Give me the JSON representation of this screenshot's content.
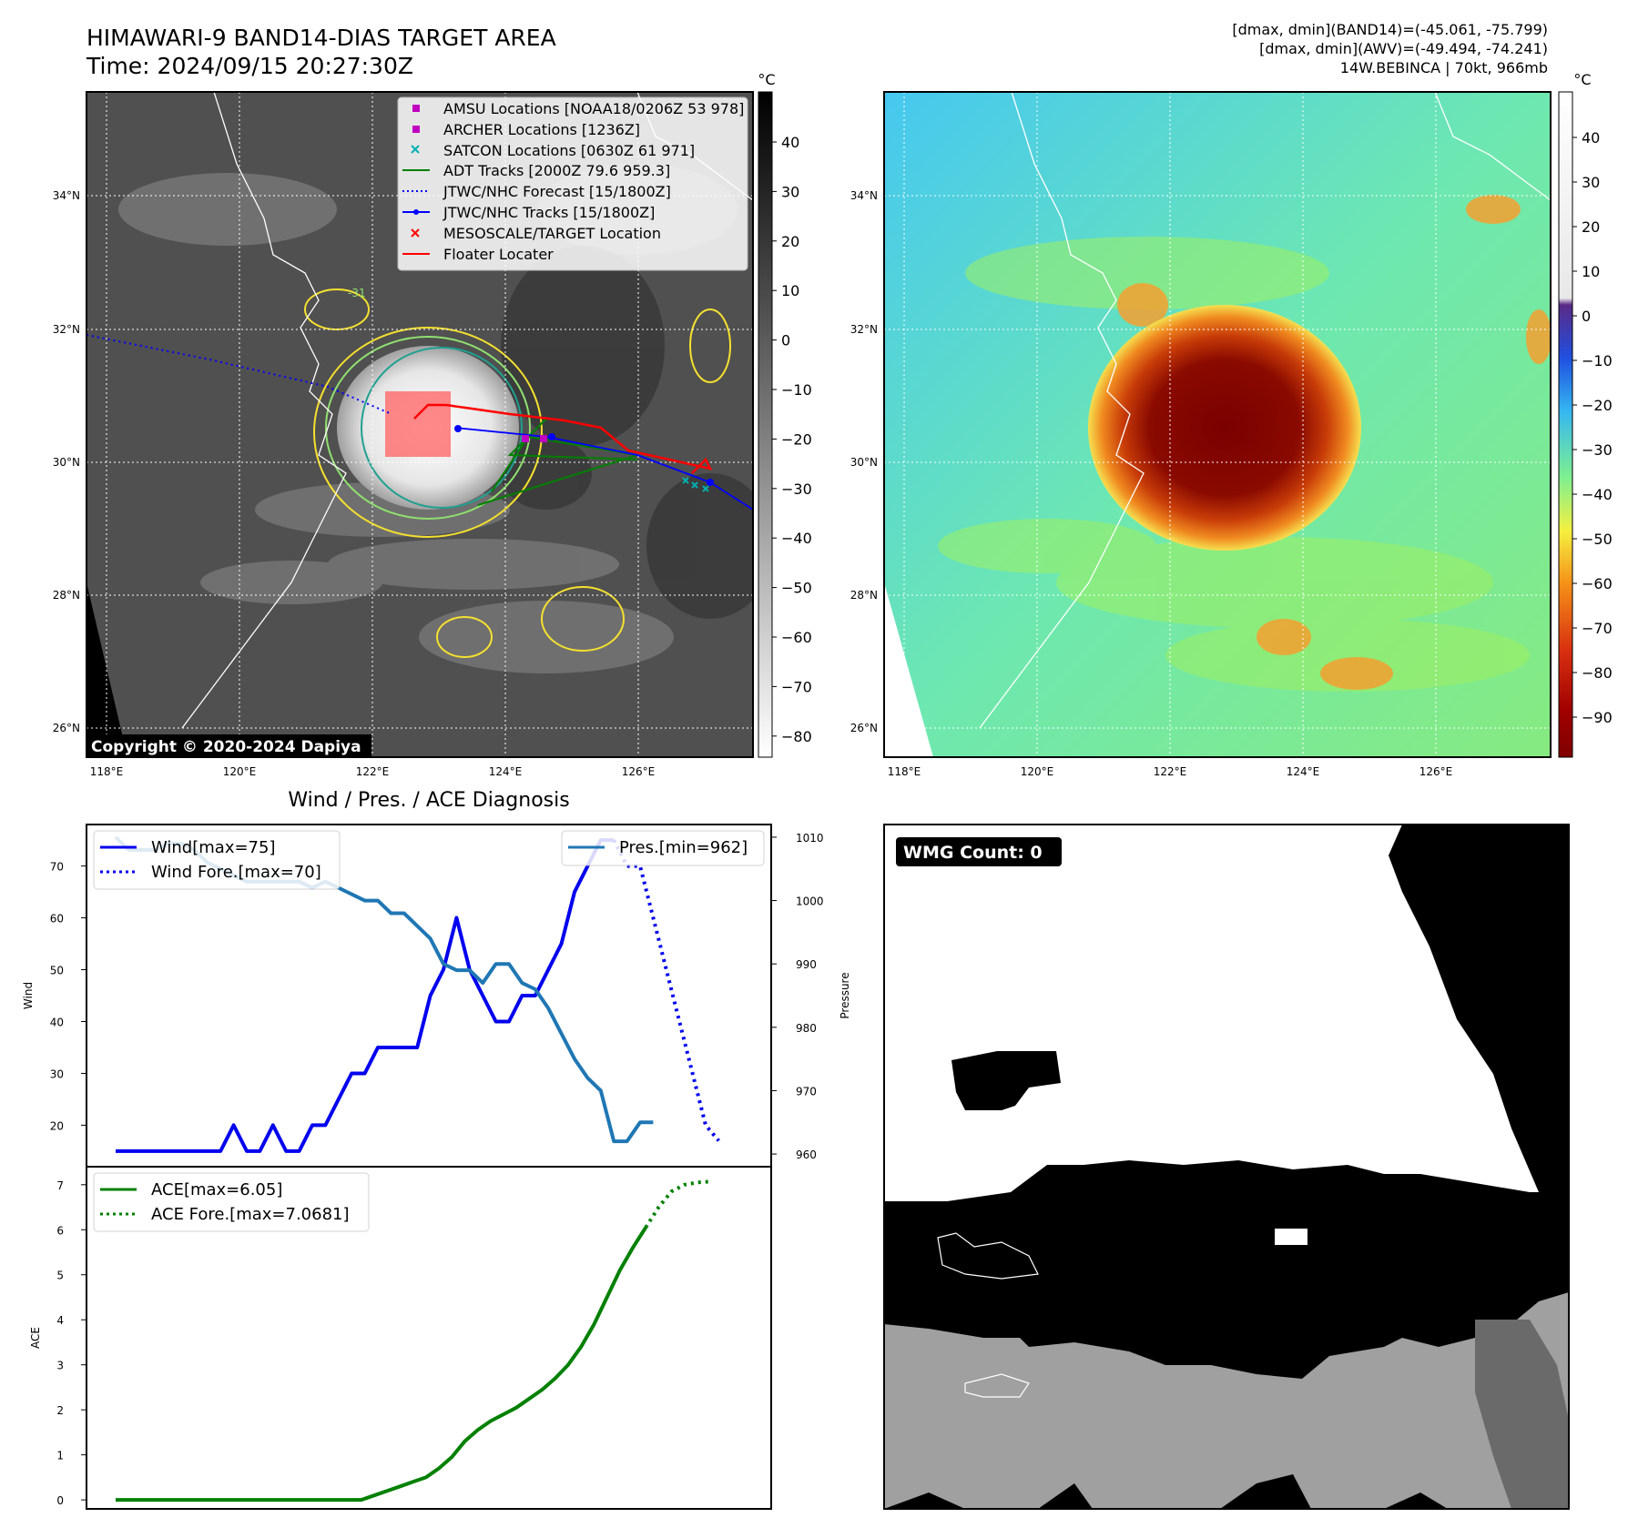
{
  "header": {
    "title_line1": "HIMAWARI-9 BAND14-DIAS TARGET AREA",
    "title_line2": "Time: 2024/09/15 20:27:30Z",
    "right_line1": "[dmax, dmin](BAND14)=(-45.061, -75.799)",
    "right_line2": "[dmax, dmin](AWV)=(-49.494, -74.241)",
    "right_line3": "14W.BEBINCA | 70kt, 966mb"
  },
  "map": {
    "lat_labels": [
      "34°N",
      "32°N",
      "30°N",
      "28°N",
      "26°N"
    ],
    "lon_labels": [
      "118°E",
      "120°E",
      "122°E",
      "124°E",
      "126°E"
    ],
    "copyright": "Copyright © 2020-2024 Dapiya",
    "contour_label": "-31",
    "legend": [
      {
        "label": "AMSU Locations [NOAA18/0206Z 53 978]",
        "color": "#c000c0"
      },
      {
        "label": "ARCHER Locations [1236Z]",
        "color": "#c000c0"
      },
      {
        "label": "SATCON Locations [0630Z 61 971]",
        "color": "#00b0b0"
      },
      {
        "label": "ADT Tracks [2000Z 79.6 959.3]",
        "color": "#008000"
      },
      {
        "label": "JTWC/NHC Forecast [15/1800Z]",
        "color": "#0000ff"
      },
      {
        "label": "JTWC/NHC Tracks [15/1800Z]",
        "color": "#0000ff"
      },
      {
        "label": "MESOSCALE/TARGET Location",
        "color": "#ff0000"
      },
      {
        "label": "Floater Locater",
        "color": "#ff0000"
      }
    ]
  },
  "colorbar_gray": {
    "unit": "°C",
    "ticks": [
      "40",
      "30",
      "20",
      "10",
      "0",
      "−10",
      "−20",
      "−30",
      "−40",
      "−50",
      "−60",
      "−70",
      "−80"
    ]
  },
  "colorbar_color": {
    "unit": "°C",
    "ticks": [
      "40",
      "30",
      "20",
      "10",
      "0",
      "−10",
      "−20",
      "−30",
      "−40",
      "−50",
      "−60",
      "−70",
      "−80",
      "−90"
    ]
  },
  "wmg": {
    "badge": "WMG Count: 0"
  },
  "chart_data": [
    {
      "type": "line",
      "title": "Wind / Pres. / ACE Diagnosis",
      "ylabel": "Wind",
      "y2label": "Pressure",
      "ylim": [
        12,
        78
      ],
      "y2lim": [
        958,
        1012
      ],
      "yticks": [
        "70",
        "60",
        "50",
        "40",
        "30",
        "20"
      ],
      "y2ticks": [
        "1010",
        "1000",
        "990",
        "980",
        "970",
        "960"
      ],
      "series": [
        {
          "name": "Wind[max=75]",
          "color": "#0000ee",
          "style": "solid",
          "values": [
            15,
            15,
            15,
            15,
            15,
            15,
            15,
            15,
            15,
            20,
            15,
            15,
            20,
            15,
            15,
            20,
            20,
            25,
            30,
            30,
            35,
            35,
            35,
            35,
            45,
            50,
            60,
            50,
            45,
            40,
            40,
            45,
            45,
            50,
            55,
            65,
            70,
            75,
            75
          ]
        },
        {
          "name": "Wind Fore.[max=70]",
          "color": "#0000ee",
          "style": "dotted",
          "start_index": 38,
          "values": [
            75,
            70,
            70,
            60,
            50,
            40,
            30,
            20,
            17
          ]
        },
        {
          "name": "Pres.[min=962]",
          "color": "#1f77b4",
          "style": "solid",
          "values": [
            1010,
            1008,
            1008,
            1008,
            1009,
            1009,
            1008,
            1006,
            1005,
            1004,
            1003,
            1003,
            1003,
            1003,
            1003,
            1002,
            1003,
            1002,
            1001,
            1000,
            1000,
            998,
            998,
            996,
            994,
            990,
            989,
            989,
            987,
            990,
            990,
            987,
            986,
            983,
            979,
            975,
            972,
            970,
            962,
            962,
            965,
            965
          ]
        }
      ],
      "legend": [
        "Wind[max=75]",
        "Wind Fore.[max=70]",
        "Pres.[min=962]"
      ]
    },
    {
      "type": "line",
      "ylabel": "ACE",
      "ylim": [
        -0.2,
        7.4
      ],
      "yticks": [
        "7",
        "6",
        "5",
        "4",
        "3",
        "2",
        "1",
        "0"
      ],
      "series": [
        {
          "name": "ACE[max=6.05]",
          "color": "#008000",
          "style": "solid",
          "values": [
            0,
            0,
            0,
            0,
            0,
            0,
            0,
            0,
            0,
            0,
            0,
            0,
            0,
            0,
            0,
            0,
            0,
            0,
            0,
            0,
            0.1,
            0.2,
            0.3,
            0.4,
            0.5,
            0.7,
            0.95,
            1.3,
            1.55,
            1.75,
            1.9,
            2.05,
            2.25,
            2.45,
            2.7,
            3.0,
            3.4,
            3.9,
            4.5,
            5.1,
            5.6,
            6.05
          ]
        },
        {
          "name": "ACE Fore.[max=7.0681]",
          "color": "#008000",
          "style": "dotted",
          "start_index": 41,
          "values": [
            6.05,
            6.5,
            6.85,
            7.0,
            7.05,
            7.07
          ]
        }
      ],
      "legend": [
        "ACE[max=6.05]",
        "ACE Fore.[max=7.0681]"
      ]
    }
  ]
}
